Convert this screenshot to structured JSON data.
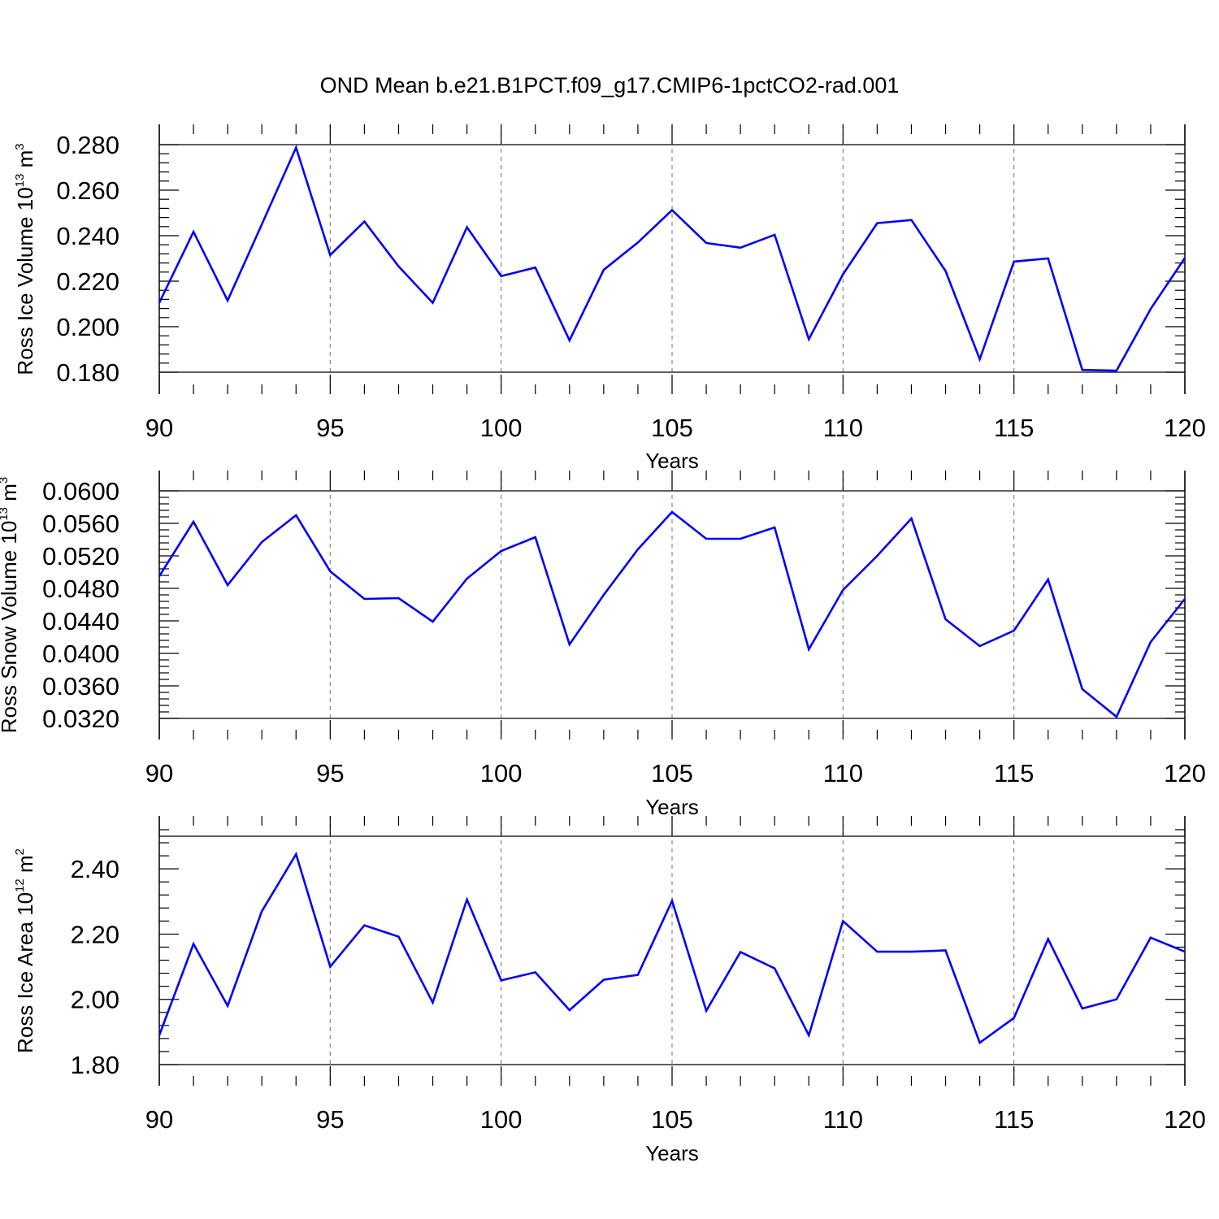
{
  "figure": {
    "title": "OND Mean b.e21.B1PCT.f09_g17.CMIP6-1pctCO2-rad.001",
    "line_color": "#0000ff",
    "grid_color": "#888888"
  },
  "chart_data": [
    {
      "type": "line",
      "title": "",
      "xlabel": "Years",
      "ylabel": {
        "main": "Ross Ice Volume 10",
        "exp": "13",
        "unit": " m",
        "unit_exp": "3"
      },
      "xlim": [
        90,
        120
      ],
      "ylim": [
        0.18,
        0.28
      ],
      "y_tick_values": [
        0.18,
        0.2,
        0.22,
        0.24,
        0.26,
        0.28
      ],
      "y_tick_labels": [
        "0.180",
        "0.200",
        "0.220",
        "0.240",
        "0.260",
        "0.280"
      ],
      "x_tick_values": [
        90,
        95,
        100,
        105,
        110,
        115,
        120
      ],
      "x_tick_labels": [
        "90",
        "95",
        "100",
        "105",
        "110",
        "115",
        "120"
      ],
      "grid": "vertical-dashed",
      "series": [
        {
          "name": "Ross Ice Volume",
          "x": [
            90,
            91,
            92,
            93,
            94,
            95,
            96,
            97,
            98,
            99,
            100,
            101,
            102,
            103,
            104,
            105,
            106,
            107,
            108,
            109,
            110,
            111,
            112,
            113,
            114,
            115,
            116,
            117,
            118,
            119,
            120
          ],
          "values": [
            0.2105,
            0.2417,
            0.2115,
            0.245,
            0.2787,
            0.2315,
            0.2462,
            0.2265,
            0.2105,
            0.2437,
            0.2222,
            0.226,
            0.194,
            0.225,
            0.237,
            0.2512,
            0.2368,
            0.2347,
            0.2404,
            0.1945,
            0.223,
            0.2455,
            0.2469,
            0.2245,
            0.1857,
            0.2286,
            0.23,
            0.181,
            0.1807,
            0.2078,
            0.2302
          ]
        }
      ]
    },
    {
      "type": "line",
      "title": "",
      "xlabel": "Years",
      "ylabel": {
        "main": "Ross Snow Volume 10",
        "exp": "13",
        "unit": " m",
        "unit_exp": "3"
      },
      "xlim": [
        90,
        120
      ],
      "ylim": [
        0.032,
        0.06
      ],
      "y_tick_values": [
        0.032,
        0.036,
        0.04,
        0.044,
        0.048,
        0.052,
        0.056,
        0.06
      ],
      "y_tick_labels": [
        "0.0320",
        "0.0360",
        "0.0400",
        "0.0440",
        "0.0480",
        "0.0520",
        "0.0560",
        "0.0600"
      ],
      "x_tick_values": [
        90,
        95,
        100,
        105,
        110,
        115,
        120
      ],
      "x_tick_labels": [
        "90",
        "95",
        "100",
        "105",
        "110",
        "115",
        "120"
      ],
      "grid": "vertical-dashed",
      "series": [
        {
          "name": "Ross Snow Volume",
          "x": [
            90,
            91,
            92,
            93,
            94,
            95,
            96,
            97,
            98,
            99,
            100,
            101,
            102,
            103,
            104,
            105,
            106,
            107,
            108,
            109,
            110,
            111,
            112,
            113,
            114,
            115,
            116,
            117,
            118,
            119,
            120
          ],
          "values": [
            0.0495,
            0.0562,
            0.0484,
            0.0537,
            0.057,
            0.0501,
            0.0467,
            0.0468,
            0.0439,
            0.0492,
            0.0526,
            0.0543,
            0.0411,
            0.0472,
            0.0528,
            0.0574,
            0.0541,
            0.0541,
            0.0555,
            0.0405,
            0.0478,
            0.052,
            0.0566,
            0.0442,
            0.0409,
            0.0428,
            0.0491,
            0.0356,
            0.0322,
            0.0414,
            0.0467
          ]
        }
      ]
    },
    {
      "type": "line",
      "title": "",
      "xlabel": "Years",
      "ylabel": {
        "main": "Ross Ice Area 10",
        "exp": "12",
        "unit": " m",
        "unit_exp": "2"
      },
      "xlim": [
        90,
        120
      ],
      "ylim": [
        1.8,
        2.5
      ],
      "y_tick_values": [
        1.8,
        2.0,
        2.2,
        2.4
      ],
      "y_tick_labels": [
        "1.80",
        "2.00",
        "2.20",
        "2.40"
      ],
      "x_tick_values": [
        90,
        95,
        100,
        105,
        110,
        115,
        120
      ],
      "x_tick_labels": [
        "90",
        "95",
        "100",
        "105",
        "110",
        "115",
        "120"
      ],
      "grid": "vertical-dashed",
      "series": [
        {
          "name": "Ross Ice Area",
          "x": [
            90,
            91,
            92,
            93,
            94,
            95,
            96,
            97,
            98,
            99,
            100,
            101,
            102,
            103,
            104,
            105,
            106,
            107,
            108,
            109,
            110,
            111,
            112,
            113,
            114,
            115,
            116,
            117,
            118,
            119,
            120
          ],
          "values": [
            1.89,
            2.17,
            1.98,
            2.27,
            2.445,
            2.1,
            2.227,
            2.192,
            1.99,
            2.306,
            2.058,
            2.083,
            1.967,
            2.06,
            2.075,
            2.302,
            1.965,
            2.145,
            2.095,
            1.89,
            2.24,
            2.146,
            2.146,
            2.15,
            1.867,
            1.943,
            2.185,
            1.972,
            2.0,
            2.189,
            2.146
          ]
        }
      ]
    }
  ]
}
